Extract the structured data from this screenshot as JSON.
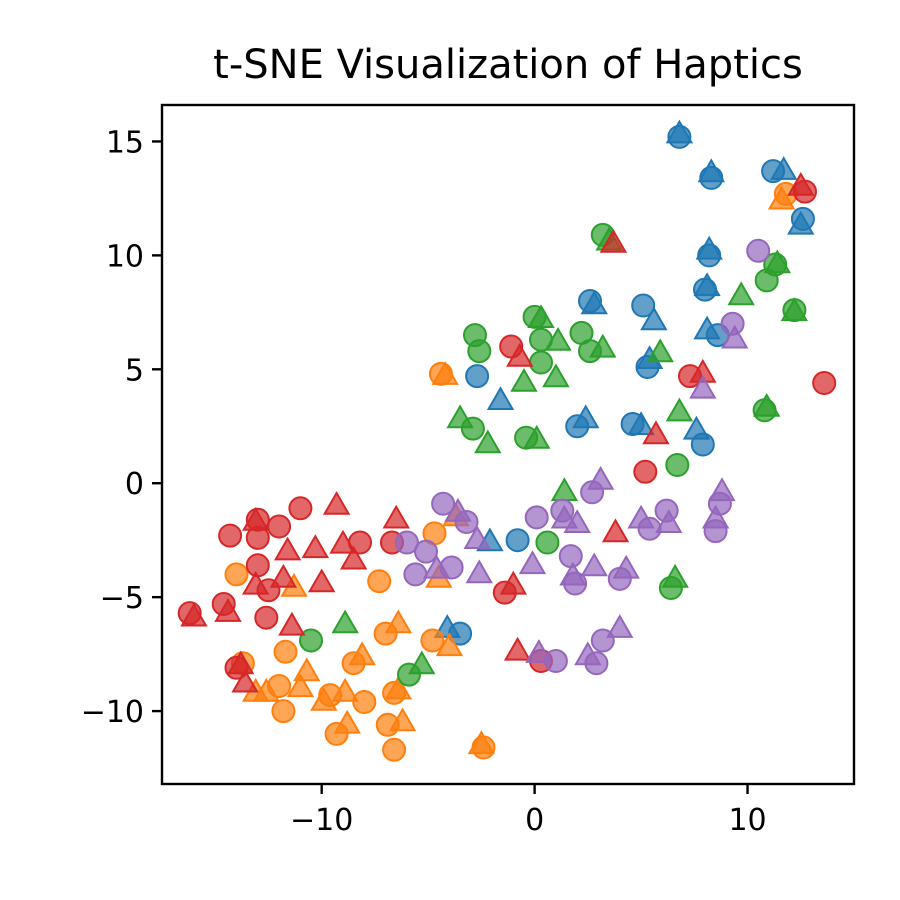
{
  "chart_data": {
    "type": "scatter",
    "title": "t-SNE Visualization of Haptics",
    "xlabel": "",
    "ylabel": "",
    "xlim": [
      -17.5,
      15
    ],
    "ylim": [
      -13.2,
      16.6
    ],
    "xticks": [
      -10,
      0,
      10
    ],
    "yticks": [
      -10,
      -5,
      0,
      5,
      10,
      15
    ],
    "grid": false,
    "legend": "none",
    "colors": {
      "blue": "#1f77b4",
      "orange": "#ff7f0e",
      "green": "#2ca02c",
      "red": "#d62728",
      "purple": "#9467bd"
    },
    "marker_alpha": 0.7,
    "series": [
      {
        "color": "blue",
        "circles": [
          [
            6.8,
            15.2
          ],
          [
            11.2,
            13.7
          ],
          [
            8.3,
            13.4
          ],
          [
            12.6,
            11.6
          ],
          [
            8.2,
            10.0
          ],
          [
            2.6,
            8.0
          ],
          [
            5.1,
            7.8
          ],
          [
            8.0,
            8.5
          ],
          [
            8.6,
            6.5
          ],
          [
            -2.7,
            4.7
          ],
          [
            5.3,
            5.1
          ],
          [
            2.0,
            2.5
          ],
          [
            4.6,
            2.6
          ],
          [
            7.9,
            1.7
          ],
          [
            -0.8,
            -2.5
          ],
          [
            -3.5,
            -6.6
          ]
        ],
        "triangles": [
          [
            6.8,
            15.3
          ],
          [
            11.7,
            13.7
          ],
          [
            8.3,
            13.6
          ],
          [
            12.5,
            11.3
          ],
          [
            8.2,
            10.2
          ],
          [
            2.8,
            7.8
          ],
          [
            5.6,
            7.1
          ],
          [
            8.1,
            8.6
          ],
          [
            8.1,
            6.7
          ],
          [
            -1.6,
            3.6
          ],
          [
            5.4,
            5.4
          ],
          [
            2.4,
            2.8
          ],
          [
            5.0,
            2.5
          ],
          [
            7.6,
            2.3
          ],
          [
            -2.1,
            -2.6
          ],
          [
            -4.1,
            -6.4
          ]
        ]
      },
      {
        "color": "orange",
        "circles": [
          [
            11.8,
            12.7
          ],
          [
            -4.4,
            4.8
          ],
          [
            -4.7,
            -2.2
          ],
          [
            -14.0,
            -4.0
          ],
          [
            -7.3,
            -4.3
          ],
          [
            -7.0,
            -6.6
          ],
          [
            -4.8,
            -6.9
          ],
          [
            -13.7,
            -7.9
          ],
          [
            -11.7,
            -7.4
          ],
          [
            -8.5,
            -7.9
          ],
          [
            -12.0,
            -8.9
          ],
          [
            -9.6,
            -9.3
          ],
          [
            -11.8,
            -10.0
          ],
          [
            -6.6,
            -9.2
          ],
          [
            -8.0,
            -9.6
          ],
          [
            -9.3,
            -11.0
          ],
          [
            -6.9,
            -10.6
          ],
          [
            -6.6,
            -11.7
          ],
          [
            -2.4,
            -11.6
          ]
        ],
        "triangles": [
          [
            11.6,
            12.4
          ],
          [
            -4.2,
            4.7
          ],
          [
            -3.7,
            -1.5
          ],
          [
            -4.5,
            -4.2
          ],
          [
            -11.3,
            -4.6
          ],
          [
            -6.4,
            -6.2
          ],
          [
            -4.0,
            -7.2
          ],
          [
            -13.1,
            -9.2
          ],
          [
            -10.7,
            -8.3
          ],
          [
            -8.1,
            -7.6
          ],
          [
            -12.6,
            -9.2
          ],
          [
            -9.9,
            -9.6
          ],
          [
            -11.0,
            -9.0
          ],
          [
            -8.9,
            -9.2
          ],
          [
            -6.4,
            -9.1
          ],
          [
            -8.8,
            -10.6
          ],
          [
            -6.2,
            -10.5
          ],
          [
            -2.5,
            -11.5
          ]
        ]
      },
      {
        "color": "green",
        "circles": [
          [
            3.2,
            10.9
          ],
          [
            11.3,
            9.6
          ],
          [
            10.9,
            8.9
          ],
          [
            -2.8,
            6.5
          ],
          [
            -2.6,
            5.8
          ],
          [
            0.0,
            7.3
          ],
          [
            2.2,
            6.6
          ],
          [
            2.6,
            5.8
          ],
          [
            0.3,
            6.3
          ],
          [
            0.3,
            5.3
          ],
          [
            12.2,
            7.6
          ],
          [
            -2.9,
            2.4
          ],
          [
            -0.4,
            2.0
          ],
          [
            10.8,
            3.2
          ],
          [
            6.7,
            0.8
          ],
          [
            0.6,
            -2.6
          ],
          [
            6.4,
            -4.6
          ],
          [
            -10.5,
            -6.9
          ],
          [
            -5.9,
            -8.4
          ]
        ],
        "triangles": [
          [
            3.5,
            10.6
          ],
          [
            11.4,
            9.6
          ],
          [
            9.7,
            8.2
          ],
          [
            0.3,
            7.2
          ],
          [
            1.1,
            6.2
          ],
          [
            3.2,
            5.9
          ],
          [
            5.9,
            5.7
          ],
          [
            1.0,
            4.6
          ],
          [
            -0.5,
            4.4
          ],
          [
            12.2,
            7.5
          ],
          [
            -3.5,
            2.8
          ],
          [
            -2.2,
            1.7
          ],
          [
            0.1,
            1.9
          ],
          [
            6.8,
            3.1
          ],
          [
            1.4,
            -0.4
          ],
          [
            10.9,
            3.3
          ],
          [
            6.6,
            -4.2
          ],
          [
            -8.9,
            -6.2
          ],
          [
            -5.3,
            -8.0
          ]
        ]
      },
      {
        "color": "red",
        "circles": [
          [
            12.7,
            12.8
          ],
          [
            -1.1,
            6.0
          ],
          [
            7.3,
            4.7
          ],
          [
            13.6,
            4.4
          ],
          [
            5.2,
            0.5
          ],
          [
            -11.0,
            -1.1
          ],
          [
            -14.3,
            -2.3
          ],
          [
            -13.0,
            -1.6
          ],
          [
            -13.0,
            -2.4
          ],
          [
            -12.0,
            -1.9
          ],
          [
            -13.0,
            -3.6
          ],
          [
            -12.5,
            -4.7
          ],
          [
            -8.2,
            -2.6
          ],
          [
            -6.7,
            -2.6
          ],
          [
            -14.6,
            -5.3
          ],
          [
            -16.2,
            -5.7
          ],
          [
            -12.6,
            -5.9
          ],
          [
            -14.0,
            -8.1
          ],
          [
            -1.4,
            -4.8
          ],
          [
            0.3,
            -7.8
          ]
        ],
        "triangles": [
          [
            12.5,
            13.0
          ],
          [
            -0.7,
            5.5
          ],
          [
            7.9,
            4.8
          ],
          [
            3.7,
            10.5
          ],
          [
            5.7,
            2.1
          ],
          [
            -9.3,
            -1.0
          ],
          [
            -6.5,
            -1.6
          ],
          [
            -13.1,
            -1.7
          ],
          [
            -11.6,
            -3.0
          ],
          [
            -10.3,
            -2.9
          ],
          [
            -9.0,
            -2.7
          ],
          [
            -8.5,
            -3.4
          ],
          [
            -13.1,
            -4.5
          ],
          [
            -11.8,
            -4.2
          ],
          [
            -10.0,
            -4.4
          ],
          [
            -14.4,
            -5.7
          ],
          [
            -16.0,
            -5.9
          ],
          [
            -11.4,
            -6.3
          ],
          [
            -13.8,
            -8.0
          ],
          [
            -13.6,
            -8.8
          ],
          [
            -1.0,
            -4.5
          ],
          [
            3.8,
            -2.2
          ],
          [
            -0.8,
            -7.4
          ]
        ]
      },
      {
        "color": "purple",
        "circles": [
          [
            10.5,
            10.2
          ],
          [
            9.3,
            7.0
          ],
          [
            -4.3,
            -0.9
          ],
          [
            -3.2,
            -1.7
          ],
          [
            0.1,
            -1.5
          ],
          [
            1.3,
            -1.2
          ],
          [
            2.7,
            -0.4
          ],
          [
            6.2,
            -1.2
          ],
          [
            5.4,
            -2.0
          ],
          [
            8.7,
            -0.9
          ],
          [
            -6.0,
            -2.6
          ],
          [
            -5.1,
            -3.0
          ],
          [
            -5.6,
            -4.0
          ],
          [
            -3.9,
            -3.7
          ],
          [
            1.7,
            -3.2
          ],
          [
            1.9,
            -4.4
          ],
          [
            4.0,
            -4.2
          ],
          [
            8.5,
            -2.1
          ],
          [
            3.2,
            -6.9
          ],
          [
            2.9,
            -7.9
          ],
          [
            1.0,
            -7.8
          ]
        ],
        "triangles": [
          [
            9.4,
            6.3
          ],
          [
            7.9,
            4.1
          ],
          [
            -3.6,
            -1.3
          ],
          [
            1.4,
            -1.6
          ],
          [
            3.1,
            0.1
          ],
          [
            6.3,
            -1.8
          ],
          [
            8.8,
            -0.4
          ],
          [
            2.0,
            -1.8
          ],
          [
            -4.6,
            -3.8
          ],
          [
            -2.7,
            -2.5
          ],
          [
            -2.6,
            -4.0
          ],
          [
            -0.1,
            -3.6
          ],
          [
            1.8,
            -4.1
          ],
          [
            2.8,
            -3.7
          ],
          [
            4.3,
            -3.8
          ],
          [
            5.0,
            -1.6
          ],
          [
            8.5,
            -1.6
          ],
          [
            4.0,
            -6.4
          ],
          [
            2.5,
            -7.6
          ],
          [
            0.2,
            -7.5
          ]
        ]
      }
    ]
  }
}
